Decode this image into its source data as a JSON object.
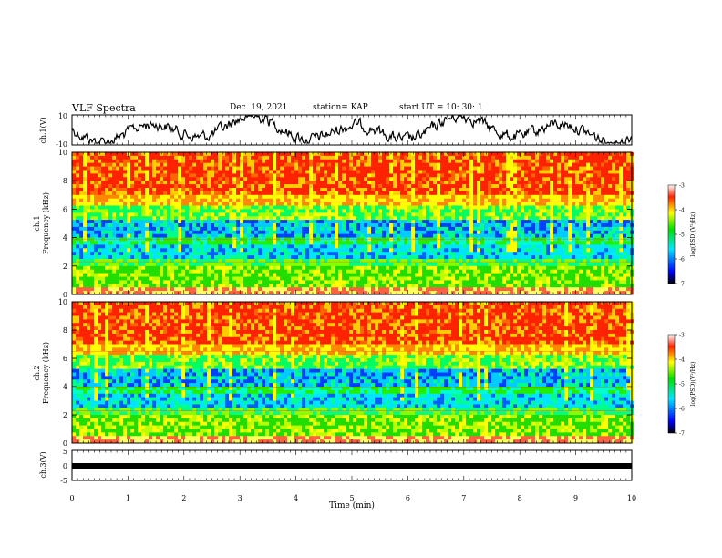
{
  "header": {
    "title": "VLF Spectra",
    "date": "Dec. 19, 2021",
    "station": "station= KAP",
    "start": "start  UT  =   10: 30: 1"
  },
  "chart_data": [
    {
      "type": "line",
      "panel": "ch1-waveform",
      "ylabel": "ch.1(V)",
      "ylim": [
        -10,
        10
      ],
      "yticks": [
        "10",
        "-10"
      ],
      "xlim": [
        0,
        10
      ],
      "series": [
        {
          "values_description_only_in_image": true
        }
      ]
    },
    {
      "type": "heatmap",
      "panel": "ch1-spectrogram",
      "ylabel": "ch.1\nFrequency (kHz)",
      "ylabel_line1": "ch.1",
      "ylabel_line2": "Frequency (kHz)",
      "ylim": [
        0,
        10
      ],
      "yticks": [
        "0",
        "2",
        "4",
        "6",
        "8",
        "10"
      ],
      "xlim": [
        0,
        10
      ],
      "colorbar": {
        "label": "log(PSD)(V²/Hz)",
        "range": [
          -7,
          -3
        ],
        "ticks": [
          "-3",
          "-4",
          "-5",
          "-6",
          "-7"
        ]
      }
    },
    {
      "type": "heatmap",
      "panel": "ch2-spectrogram",
      "ylabel_line1": "ch.2",
      "ylabel_line2": "Frequency (kHz)",
      "ylim": [
        0,
        10
      ],
      "yticks": [
        "0",
        "2",
        "4",
        "6",
        "8",
        "10"
      ],
      "xlim": [
        0,
        10
      ],
      "colorbar": {
        "label": "log(PSD)(V²/Hz)",
        "range": [
          -7,
          -3
        ],
        "ticks": [
          "-3",
          "-4",
          "-5",
          "-6",
          "-7"
        ]
      }
    },
    {
      "type": "line",
      "panel": "ch3-waveform",
      "ylabel": "ch.3(V)",
      "ylim": [
        -5,
        5
      ],
      "yticks": [
        "5",
        "0",
        "-5"
      ],
      "xlim": [
        0,
        10
      ],
      "xlabel": "Time (min)",
      "xticks": [
        "0",
        "1",
        "2",
        "3",
        "4",
        "5",
        "6",
        "7",
        "8",
        "9",
        "10"
      ]
    }
  ],
  "colors": {
    "high": "#ff2200",
    "mid": "#22dd00",
    "low": "#0000ff",
    "vlow": "#000000"
  }
}
